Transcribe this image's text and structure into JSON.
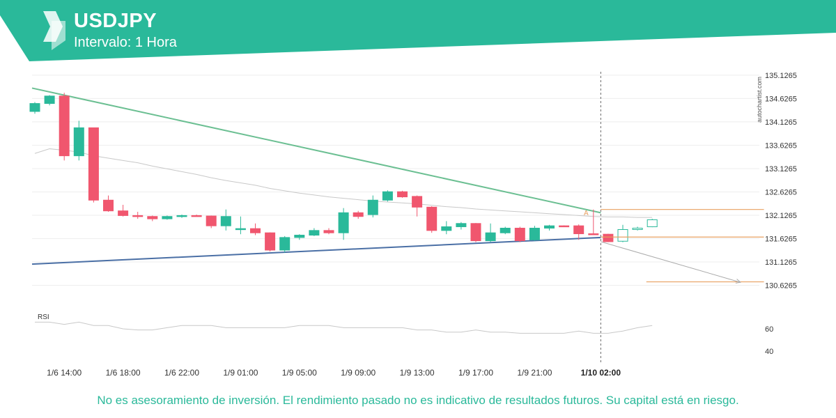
{
  "header": {
    "symbol": "USDJPY",
    "interval": "Intervalo: 1 Hora",
    "brand_color": "#2ab99a"
  },
  "watermark": "autochartist.com",
  "rsi_label": "RSI",
  "pattern_label": "A",
  "disclaimer": "No es asesoramiento de inversión. El rendimiento pasado no es indicativo de resultados futuros. Su capital está en riesgo.",
  "colors": {
    "up": "#2ab99a",
    "down": "#f0566e",
    "resistance": "#6bbf92",
    "support": "#4a6fa5",
    "level": "#e8a060",
    "ma": "#c8c8c8",
    "grid": "#eeeeee"
  },
  "chart_data": {
    "type": "candlestick",
    "title": "USDJPY",
    "y_ticks": [
      "135.1265",
      "134.6265",
      "134.1265",
      "133.6265",
      "133.1265",
      "132.6265",
      "132.1265",
      "131.6265",
      "131.1265",
      "130.6265"
    ],
    "ylim": [
      130.35,
      135.2
    ],
    "x_ticks": [
      "1/6 14:00",
      "1/6 18:00",
      "1/6 22:00",
      "1/9 01:00",
      "1/9 05:00",
      "1/9 09:00",
      "1/9 13:00",
      "1/9 17:00",
      "1/9 21:00",
      "1/10 02:00"
    ],
    "x_tick_index": [
      2,
      6,
      10,
      14,
      18,
      22,
      26,
      30,
      34,
      38.5
    ],
    "highlight_x_tick": "1/10 02:00",
    "candles": [
      {
        "o": 134.35,
        "h": 134.55,
        "l": 134.3,
        "c": 134.52
      },
      {
        "o": 134.52,
        "h": 134.7,
        "l": 134.48,
        "c": 134.68
      },
      {
        "o": 134.68,
        "h": 134.75,
        "l": 133.3,
        "c": 133.4
      },
      {
        "o": 133.4,
        "h": 134.15,
        "l": 133.3,
        "c": 134.0
      },
      {
        "o": 134.0,
        "h": 134.0,
        "l": 132.4,
        "c": 132.45
      },
      {
        "o": 132.45,
        "h": 132.55,
        "l": 132.2,
        "c": 132.22
      },
      {
        "o": 132.22,
        "h": 132.35,
        "l": 132.1,
        "c": 132.12
      },
      {
        "o": 132.12,
        "h": 132.2,
        "l": 132.05,
        "c": 132.1
      },
      {
        "o": 132.1,
        "h": 132.12,
        "l": 132.0,
        "c": 132.05
      },
      {
        "o": 132.05,
        "h": 132.12,
        "l": 132.03,
        "c": 132.1
      },
      {
        "o": 132.1,
        "h": 132.14,
        "l": 132.07,
        "c": 132.12
      },
      {
        "o": 132.12,
        "h": 132.14,
        "l": 132.1,
        "c": 132.11
      },
      {
        "o": 132.11,
        "h": 132.12,
        "l": 131.85,
        "c": 131.9
      },
      {
        "o": 131.9,
        "h": 132.25,
        "l": 131.8,
        "c": 132.1
      },
      {
        "o": 131.82,
        "h": 132.1,
        "l": 131.72,
        "c": 131.84
      },
      {
        "o": 131.84,
        "h": 131.95,
        "l": 131.7,
        "c": 131.75
      },
      {
        "o": 131.75,
        "h": 131.76,
        "l": 131.35,
        "c": 131.38
      },
      {
        "o": 131.38,
        "h": 131.68,
        "l": 131.33,
        "c": 131.65
      },
      {
        "o": 131.65,
        "h": 131.72,
        "l": 131.6,
        "c": 131.7
      },
      {
        "o": 131.7,
        "h": 131.85,
        "l": 131.68,
        "c": 131.8
      },
      {
        "o": 131.8,
        "h": 131.85,
        "l": 131.72,
        "c": 131.75
      },
      {
        "o": 131.75,
        "h": 132.28,
        "l": 131.6,
        "c": 132.18
      },
      {
        "o": 132.18,
        "h": 132.22,
        "l": 132.05,
        "c": 132.1
      },
      {
        "o": 132.14,
        "h": 132.55,
        "l": 132.08,
        "c": 132.45
      },
      {
        "o": 132.45,
        "h": 132.66,
        "l": 132.42,
        "c": 132.63
      },
      {
        "o": 132.63,
        "h": 132.65,
        "l": 132.5,
        "c": 132.52
      },
      {
        "o": 132.53,
        "h": 132.55,
        "l": 132.1,
        "c": 132.3
      },
      {
        "o": 132.3,
        "h": 132.32,
        "l": 131.75,
        "c": 131.8
      },
      {
        "o": 131.8,
        "h": 132.0,
        "l": 131.72,
        "c": 131.88
      },
      {
        "o": 131.88,
        "h": 131.98,
        "l": 131.82,
        "c": 131.95
      },
      {
        "o": 131.95,
        "h": 131.96,
        "l": 131.55,
        "c": 131.58
      },
      {
        "o": 131.58,
        "h": 131.95,
        "l": 131.55,
        "c": 131.75
      },
      {
        "o": 131.75,
        "h": 131.88,
        "l": 131.72,
        "c": 131.85
      },
      {
        "o": 131.85,
        "h": 131.88,
        "l": 131.55,
        "c": 131.58
      },
      {
        "o": 131.6,
        "h": 131.9,
        "l": 131.58,
        "c": 131.85
      },
      {
        "o": 131.85,
        "h": 131.92,
        "l": 131.8,
        "c": 131.9
      },
      {
        "o": 131.9,
        "h": 131.91,
        "l": 131.89,
        "c": 131.89
      },
      {
        "o": 131.9,
        "h": 131.93,
        "l": 131.6,
        "c": 131.73
      },
      {
        "o": 131.73,
        "h": 132.25,
        "l": 131.7,
        "c": 131.72
      },
      {
        "o": 131.72,
        "h": 131.73,
        "l": 131.55,
        "c": 131.56
      },
      {
        "o": 131.57,
        "h": 131.92,
        "l": 131.55,
        "c": 131.82
      },
      {
        "o": 131.82,
        "h": 131.88,
        "l": 131.8,
        "c": 131.85
      },
      {
        "o": 131.88,
        "h": 132.05,
        "l": 131.87,
        "c": 132.03
      }
    ],
    "moving_average": [
      133.45,
      133.55,
      133.52,
      133.48,
      133.4,
      133.35,
      133.3,
      133.25,
      133.18,
      133.12,
      133.06,
      133.0,
      132.93,
      132.87,
      132.82,
      132.77,
      132.7,
      132.65,
      132.6,
      132.56,
      132.52,
      132.49,
      132.46,
      132.43,
      132.41,
      132.39,
      132.37,
      132.34,
      132.31,
      132.29,
      132.26,
      132.24,
      132.22,
      132.2,
      132.18,
      132.16,
      132.14,
      132.12,
      132.1,
      132.09,
      132.09,
      132.08,
      132.08
    ],
    "resistance_line": {
      "from": [
        0,
        134.85
      ],
      "to": [
        38.5,
        132.18
      ]
    },
    "support_line": {
      "from": [
        0,
        131.08
      ],
      "to": [
        38.5,
        131.65
      ]
    },
    "levels": [
      {
        "value": 132.25,
        "from_index": 38.5,
        "to_index": 49.6
      },
      {
        "value": 131.66,
        "from_index": 38.5,
        "to_index": 49.6
      },
      {
        "value": 130.7,
        "from_index": 41.6,
        "to_index": 49.6
      }
    ],
    "projection": {
      "from": [
        38.5,
        131.56
      ],
      "to": [
        48,
        130.69
      ]
    },
    "pattern_index": 38.5,
    "rsi": {
      "values": [
        66,
        66,
        64,
        66,
        63,
        63,
        60,
        59,
        59,
        61,
        63,
        63,
        63,
        61,
        61,
        61,
        61,
        61,
        63,
        63,
        63,
        61,
        61,
        61,
        61,
        61,
        59,
        59,
        57,
        57,
        59,
        57,
        57,
        56,
        56,
        56,
        56,
        58,
        56,
        56,
        58,
        61,
        63
      ],
      "ticks": [
        "60",
        "40"
      ],
      "ylim": [
        30,
        80
      ]
    }
  }
}
